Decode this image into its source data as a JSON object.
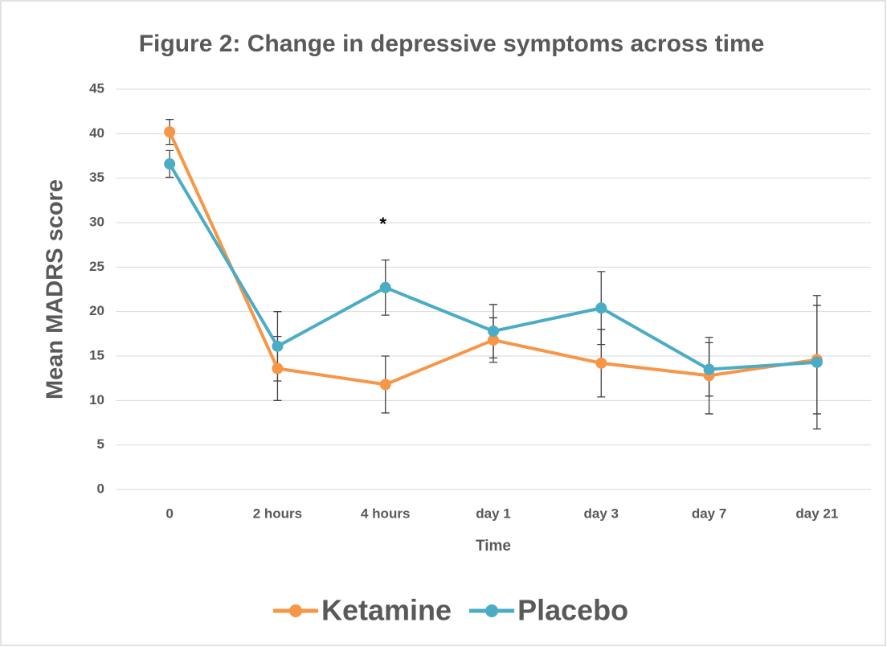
{
  "chart_data": {
    "type": "line",
    "title": "Figure 2: Change in depressive symptoms across time",
    "x_label": "Time",
    "y_label": "Mean MADRS score",
    "annotation": "*",
    "categories": [
      "0",
      "2 hours",
      "4 hours",
      "day 1",
      "day 3",
      "day 7",
      "day 21"
    ],
    "series": [
      {
        "name": "Ketamine",
        "color": "#f79646",
        "values": [
          40.2,
          13.6,
          11.8,
          16.8,
          14.2,
          12.8,
          14.6
        ],
        "errors": [
          1.4,
          3.6,
          3.2,
          2.5,
          3.8,
          4.3,
          6.1
        ]
      },
      {
        "name": "Placebo",
        "color": "#4bacc6",
        "values": [
          36.6,
          16.1,
          22.7,
          17.8,
          20.4,
          13.5,
          14.3
        ],
        "errors": [
          1.5,
          3.9,
          3.1,
          3.0,
          4.1,
          3.0,
          7.5
        ]
      }
    ],
    "ylim": [
      0,
      45
    ],
    "yticks": [
      0,
      5,
      10,
      15,
      20,
      25,
      30,
      35,
      40,
      45
    ],
    "grid": true,
    "legend": "bottom"
  }
}
